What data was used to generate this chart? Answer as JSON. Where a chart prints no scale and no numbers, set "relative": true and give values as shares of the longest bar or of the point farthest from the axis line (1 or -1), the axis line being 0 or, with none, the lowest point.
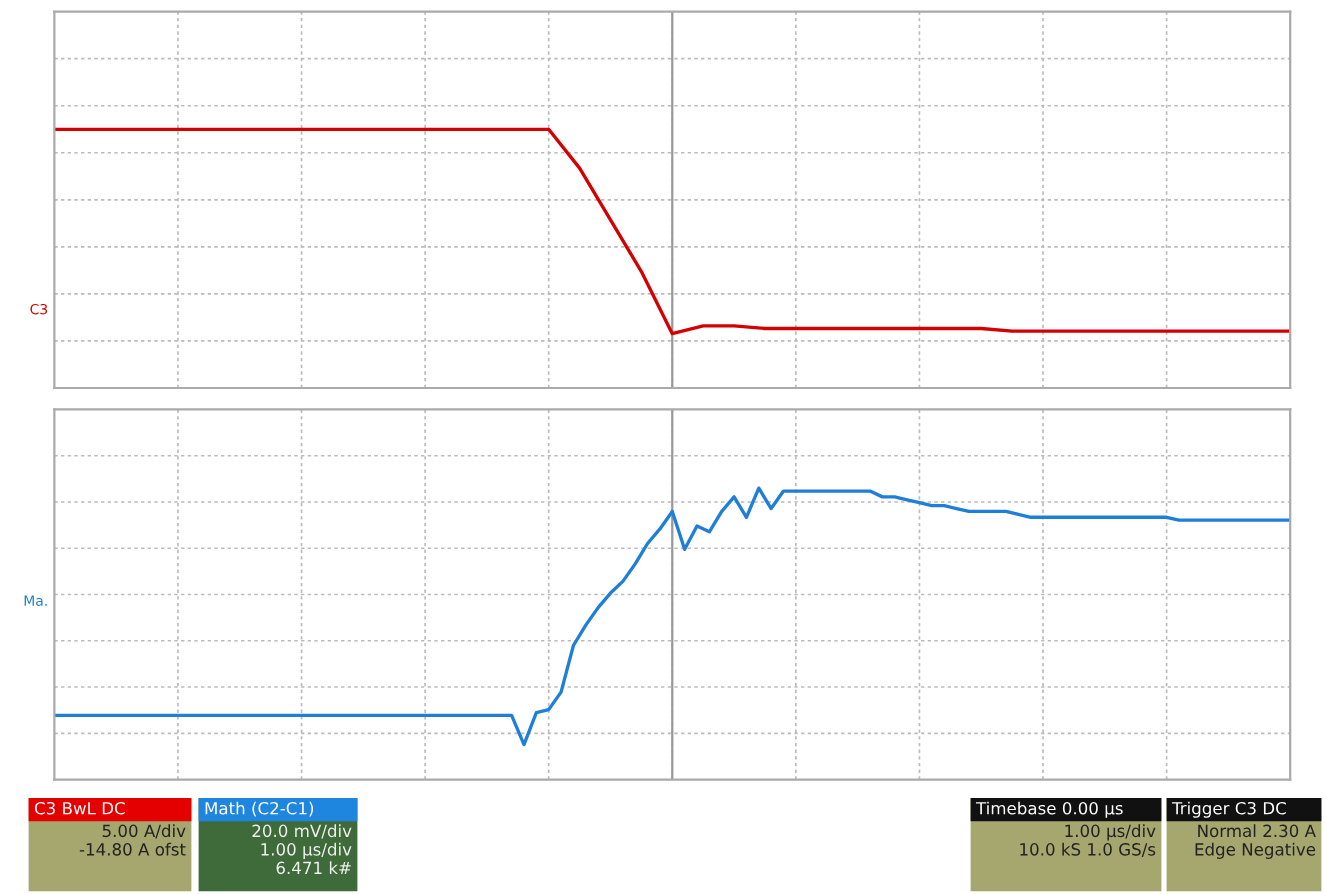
{
  "chart_data": [
    {
      "type": "line",
      "relative": true,
      "grid": true,
      "marker": "none",
      "line_style": "solid",
      "categories": [
        null,
        null,
        null,
        null,
        null,
        null,
        null,
        null,
        null,
        null,
        null,
        null,
        null,
        null,
        null,
        null,
        null,
        null,
        null,
        null,
        null,
        null,
        null,
        null,
        null,
        null,
        null,
        null,
        null,
        null,
        null,
        null,
        null,
        null,
        null,
        null,
        null,
        null,
        null,
        null,
        null
      ],
      "series": [
        {
          "name": "C3",
          "color": "#d40000",
          "values": [
            1,
            1,
            1,
            1,
            1,
            1,
            1,
            1,
            1,
            1,
            1,
            1,
            1,
            1,
            1,
            1,
            1,
            0.85,
            0.65,
            0.45,
            0.21,
            0.24,
            0.24,
            0.23,
            0.23,
            0.23,
            0.23,
            0.23,
            0.23,
            0.23,
            0.23,
            0.22,
            0.22,
            0.22,
            0.22,
            0.22,
            0.22,
            0.22,
            0.22,
            0.22,
            0.22
          ]
        }
      ]
    },
    {
      "type": "line",
      "relative": true,
      "grid": true,
      "marker": "none",
      "line_style": "solid",
      "categories": [
        null,
        null,
        null,
        null,
        null,
        null,
        null,
        null,
        null,
        null,
        null,
        null,
        null,
        null,
        null,
        null,
        null,
        null,
        null,
        null,
        null,
        null,
        null,
        null,
        null,
        null,
        null,
        null,
        null,
        null,
        null,
        null,
        null,
        null,
        null,
        null,
        null,
        null,
        null,
        null,
        null,
        null,
        null,
        null,
        null,
        null,
        null,
        null,
        null,
        null,
        null,
        null,
        null,
        null,
        null,
        null,
        null,
        null,
        null,
        null,
        null,
        null,
        null,
        null,
        null,
        null,
        null,
        null,
        null,
        null,
        null,
        null,
        null,
        null,
        null,
        null,
        null,
        null,
        null,
        null,
        null,
        null,
        null,
        null,
        null,
        null,
        null,
        null,
        null,
        null,
        null,
        null,
        null,
        null,
        null,
        null,
        null,
        null,
        null,
        null,
        null
      ],
      "series": [
        {
          "name": "Ma.",
          "color": "#1f7fd8",
          "values": [
            0.22,
            0.22,
            0.22,
            0.22,
            0.22,
            0.22,
            0.22,
            0.22,
            0.22,
            0.22,
            0.22,
            0.22,
            0.22,
            0.22,
            0.22,
            0.22,
            0.22,
            0.22,
            0.22,
            0.22,
            0.22,
            0.22,
            0.22,
            0.22,
            0.22,
            0.22,
            0.22,
            0.22,
            0.22,
            0.22,
            0.22,
            0.22,
            0.22,
            0.22,
            0.22,
            0.22,
            0.22,
            0.22,
            0.12,
            0.23,
            0.24,
            0.3,
            0.46,
            0.53,
            0.59,
            0.64,
            0.68,
            0.74,
            0.81,
            0.86,
            0.92,
            0.79,
            0.87,
            0.85,
            0.92,
            0.97,
            0.9,
            1,
            0.93,
            0.99,
            0.99,
            0.99,
            0.99,
            0.99,
            0.99,
            0.99,
            0.99,
            0.97,
            0.97,
            0.96,
            0.95,
            0.94,
            0.94,
            0.93,
            0.92,
            0.92,
            0.92,
            0.92,
            0.91,
            0.9,
            0.9,
            0.9,
            0.9,
            0.9,
            0.9,
            0.9,
            0.9,
            0.9,
            0.9,
            0.9,
            0.9,
            0.89,
            0.89,
            0.89,
            0.89,
            0.89,
            0.89,
            0.89,
            0.89,
            0.89,
            0.89
          ]
        }
      ]
    },
    {
      "type": "other",
      "annotations": [
        "C3 BwL DC\n5.00 A/div\n-14.80 A ofst",
        "Math (C2-C1)\n20.0 mV/div\n1.00 µs/div\n6.471 k#",
        "Timebase 0.00 µs\n1.00 µs/div\n10.0 kS 1.0 GS/s",
        "Trigger C3 DC\nNormal 2.30 A\nEdge Negative"
      ]
    }
  ]
}
